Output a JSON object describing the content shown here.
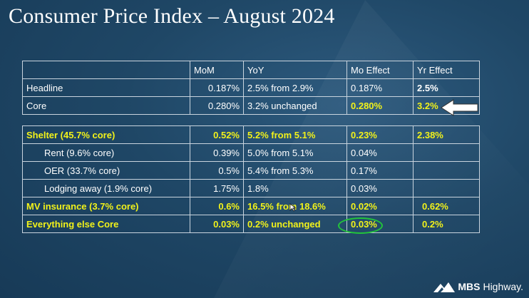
{
  "title": "Consumer Price Index – August 2024",
  "colors": {
    "highlight": "#f2f21a",
    "circle": "#22c53a",
    "background": "#1f4766"
  },
  "table1": {
    "headers": [
      "",
      "MoM",
      "YoY",
      "Mo Effect",
      "Yr Effect"
    ],
    "rows": [
      {
        "label": "Headline",
        "mom": "0.187%",
        "yoy": "2.5% from 2.9%",
        "mo": "0.187%",
        "yr": "2.5%"
      },
      {
        "label": "Core",
        "mom": "0.280%",
        "yoy": "3.2% unchanged",
        "mo": "0.280%",
        "yr": "3.2%"
      }
    ]
  },
  "table2": {
    "rows": [
      {
        "label": "Shelter (45.7% core)",
        "mom": "0.52%",
        "yoy": "5.2% from 5.1%",
        "mo": "0.23%",
        "yr": "2.38%"
      },
      {
        "label": "Rent (9.6% core)",
        "mom": "0.39%",
        "yoy": "5.0% from 5.1%",
        "mo": "0.04%",
        "yr": ""
      },
      {
        "label": "OER (33.7% core)",
        "mom": "0.5%",
        "yoy": "5.4% from 5.3%",
        "mo": "0.17%",
        "yr": ""
      },
      {
        "label": "Lodging away (1.9% core)",
        "mom": "1.75%",
        "yoy": "1.8%",
        "mo": "0.03%",
        "yr": ""
      },
      {
        "label": "MV insurance (3.7% core)",
        "mom": "0.6%",
        "yoy": "16.5% from 18.6%",
        "mo": "0.02%",
        "yr": "0.62%"
      },
      {
        "label": "Everything else Core",
        "mom": "0.03%",
        "yoy": "0.2% unchanged",
        "mo": "0.03%",
        "yr": "0.2%"
      }
    ]
  },
  "logo": {
    "brand": "MBS",
    "name": "Highway.",
    "icon": "mountain-icon"
  }
}
